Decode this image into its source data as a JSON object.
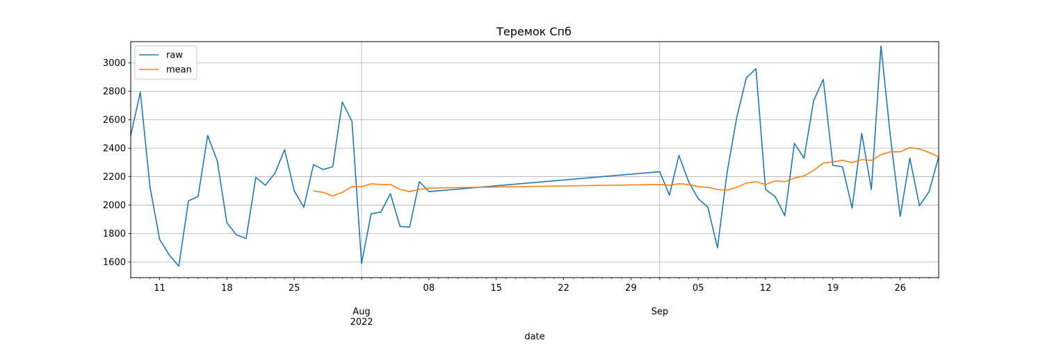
{
  "chart_data": {
    "type": "line",
    "title": "Теремок Спб",
    "xlabel": "date",
    "ylabel": "",
    "x_range": [
      "2022-07-08",
      "2022-09-30"
    ],
    "ylim": [
      1490,
      3150
    ],
    "y_ticks": [
      1600,
      1800,
      2000,
      2200,
      2400,
      2600,
      2800,
      3000
    ],
    "x_ticks": [
      {
        "date": "2022-07-11",
        "label": "11"
      },
      {
        "date": "2022-07-18",
        "label": "18"
      },
      {
        "date": "2022-07-25",
        "label": "25"
      },
      {
        "date": "2022-08-01",
        "label": "Aug",
        "label2": "2022"
      },
      {
        "date": "2022-08-08",
        "label": "08"
      },
      {
        "date": "2022-08-15",
        "label": "15"
      },
      {
        "date": "2022-08-22",
        "label": "22"
      },
      {
        "date": "2022-08-29",
        "label": "29"
      },
      {
        "date": "2022-09-01",
        "label": "Sep"
      },
      {
        "date": "2022-09-05",
        "label": "05"
      },
      {
        "date": "2022-09-12",
        "label": "12"
      },
      {
        "date": "2022-09-19",
        "label": "19"
      },
      {
        "date": "2022-09-26",
        "label": "26"
      }
    ],
    "grid_x_dates": [
      "2022-08-01",
      "2022-09-01"
    ],
    "grid": true,
    "legend_position": "top-left",
    "series": [
      {
        "name": "raw",
        "color": "#1f77b4",
        "points": [
          [
            "2022-07-08",
            2490
          ],
          [
            "2022-07-09",
            2795
          ],
          [
            "2022-07-10",
            2130
          ],
          [
            "2022-07-11",
            1760
          ],
          [
            "2022-07-12",
            1650
          ],
          [
            "2022-07-13",
            1570
          ],
          [
            "2022-07-14",
            2030
          ],
          [
            "2022-07-15",
            2060
          ],
          [
            "2022-07-16",
            2490
          ],
          [
            "2022-07-17",
            2310
          ],
          [
            "2022-07-18",
            1875
          ],
          [
            "2022-07-19",
            1790
          ],
          [
            "2022-07-20",
            1765
          ],
          [
            "2022-07-21",
            2195
          ],
          [
            "2022-07-22",
            2140
          ],
          [
            "2022-07-23",
            2225
          ],
          [
            "2022-07-24",
            2390
          ],
          [
            "2022-07-25",
            2100
          ],
          [
            "2022-07-26",
            1985
          ],
          [
            "2022-07-27",
            2285
          ],
          [
            "2022-07-28",
            2250
          ],
          [
            "2022-07-29",
            2270
          ],
          [
            "2022-07-30",
            2725
          ],
          [
            "2022-07-31",
            2590
          ],
          [
            "2022-08-01",
            1590
          ],
          [
            "2022-08-02",
            1940
          ],
          [
            "2022-08-03",
            1950
          ],
          [
            "2022-08-04",
            2080
          ],
          [
            "2022-08-05",
            1850
          ],
          [
            "2022-08-06",
            1845
          ],
          [
            "2022-08-07",
            2165
          ],
          [
            "2022-08-08",
            2095
          ],
          [
            "2022-09-01",
            2235
          ],
          [
            "2022-09-02",
            2070
          ],
          [
            "2022-09-03",
            2350
          ],
          [
            "2022-09-04",
            2165
          ],
          [
            "2022-09-05",
            2045
          ],
          [
            "2022-09-06",
            1985
          ],
          [
            "2022-09-07",
            1700
          ],
          [
            "2022-09-08",
            2230
          ],
          [
            "2022-09-09",
            2615
          ],
          [
            "2022-09-10",
            2895
          ],
          [
            "2022-09-11",
            2960
          ],
          [
            "2022-09-12",
            2110
          ],
          [
            "2022-09-13",
            2060
          ],
          [
            "2022-09-14",
            1925
          ],
          [
            "2022-09-15",
            2435
          ],
          [
            "2022-09-16",
            2330
          ],
          [
            "2022-09-17",
            2735
          ],
          [
            "2022-09-18",
            2885
          ],
          [
            "2022-09-19",
            2280
          ],
          [
            "2022-09-20",
            2270
          ],
          [
            "2022-09-21",
            1980
          ],
          [
            "2022-09-22",
            2505
          ],
          [
            "2022-09-23",
            2110
          ],
          [
            "2022-09-24",
            3120
          ],
          [
            "2022-09-25",
            2470
          ],
          [
            "2022-09-26",
            1920
          ],
          [
            "2022-09-27",
            2330
          ],
          [
            "2022-09-28",
            1995
          ],
          [
            "2022-09-29",
            2095
          ],
          [
            "2022-09-30",
            2340
          ]
        ]
      },
      {
        "name": "mean",
        "color": "#ff7f0e",
        "points": [
          [
            "2022-07-27",
            2100
          ],
          [
            "2022-07-28",
            2090
          ],
          [
            "2022-07-29",
            2065
          ],
          [
            "2022-07-30",
            2090
          ],
          [
            "2022-07-31",
            2130
          ],
          [
            "2022-08-01",
            2130
          ],
          [
            "2022-08-02",
            2150
          ],
          [
            "2022-08-03",
            2145
          ],
          [
            "2022-08-04",
            2145
          ],
          [
            "2022-08-05",
            2110
          ],
          [
            "2022-08-06",
            2095
          ],
          [
            "2022-08-07",
            2110
          ],
          [
            "2022-08-08",
            2120
          ],
          [
            "2022-09-01",
            2145
          ],
          [
            "2022-09-02",
            2140
          ],
          [
            "2022-09-03",
            2150
          ],
          [
            "2022-09-04",
            2145
          ],
          [
            "2022-09-05",
            2130
          ],
          [
            "2022-09-06",
            2125
          ],
          [
            "2022-09-07",
            2110
          ],
          [
            "2022-09-08",
            2105
          ],
          [
            "2022-09-09",
            2125
          ],
          [
            "2022-09-10",
            2155
          ],
          [
            "2022-09-11",
            2165
          ],
          [
            "2022-09-12",
            2145
          ],
          [
            "2022-09-13",
            2170
          ],
          [
            "2022-09-14",
            2165
          ],
          [
            "2022-09-15",
            2190
          ],
          [
            "2022-09-16",
            2205
          ],
          [
            "2022-09-17",
            2245
          ],
          [
            "2022-09-18",
            2295
          ],
          [
            "2022-09-19",
            2305
          ],
          [
            "2022-09-20",
            2315
          ],
          [
            "2022-09-21",
            2300
          ],
          [
            "2022-09-22",
            2320
          ],
          [
            "2022-09-23",
            2315
          ],
          [
            "2022-09-24",
            2355
          ],
          [
            "2022-09-25",
            2375
          ],
          [
            "2022-09-26",
            2375
          ],
          [
            "2022-09-27",
            2405
          ],
          [
            "2022-09-28",
            2395
          ],
          [
            "2022-09-29",
            2370
          ],
          [
            "2022-09-30",
            2340
          ]
        ]
      }
    ]
  }
}
